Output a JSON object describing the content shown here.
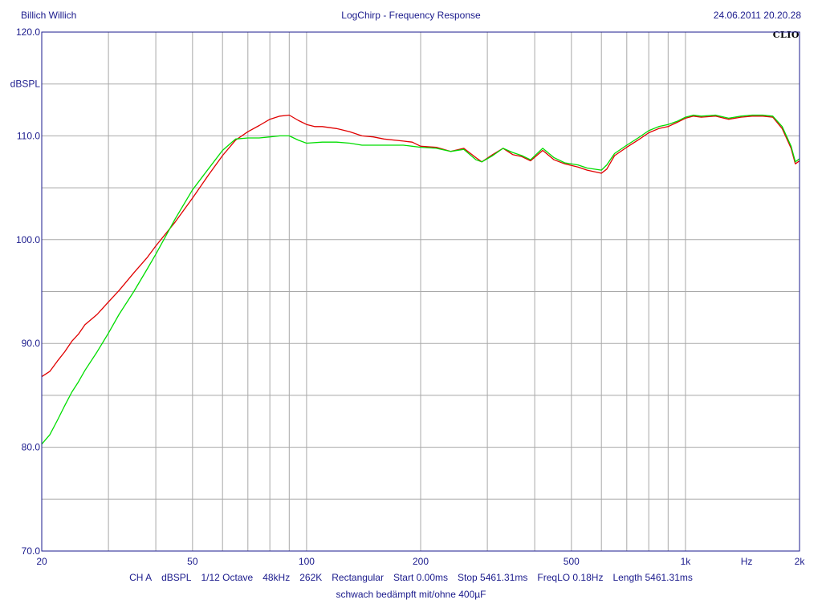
{
  "header": {
    "author": "Billich Willich",
    "title": "LogChirp - Frequency Response",
    "datetime": "24.06.2011 20.20.28",
    "logo": "CLIO"
  },
  "footer": {
    "info": [
      "CH A",
      "dBSPL",
      "1/12 Octave",
      "48kHz",
      "262K",
      "Rectangular",
      "Start 0.00ms",
      "Stop 5461.31ms",
      "FreqLO 0.18Hz",
      "Length 5461.31ms"
    ],
    "note": "schwach bedämpft mit/ohne 400µF"
  },
  "chart_data": {
    "type": "line",
    "title": "LogChirp - Frequency Response",
    "xlabel": "Hz",
    "ylabel": "dBSPL",
    "xscale": "log",
    "xlim": [
      20,
      2000
    ],
    "ylim": [
      70,
      120
    ],
    "x_tick_labels": [
      {
        "value": 20,
        "label": "20"
      },
      {
        "value": 50,
        "label": "50"
      },
      {
        "value": 100,
        "label": "100"
      },
      {
        "value": 200,
        "label": "200"
      },
      {
        "value": 500,
        "label": "500"
      },
      {
        "value": 1000,
        "label": "1k"
      },
      {
        "value": 2000,
        "label": "2k"
      }
    ],
    "x_unit_label": {
      "value": 1450,
      "label": "Hz"
    },
    "y_tick_labels": [
      {
        "value": 120,
        "label": "120.0"
      },
      {
        "value": 110,
        "label": "110.0"
      },
      {
        "value": 100,
        "label": "100.0"
      },
      {
        "value": 90,
        "label": "90.0"
      },
      {
        "value": 80,
        "label": "80.0"
      },
      {
        "value": 70,
        "label": "70.0"
      }
    ],
    "y_unit_label": {
      "value": 115,
      "label": "dBSPL"
    },
    "grid": true,
    "series": [
      {
        "color": "#e00000",
        "points": [
          [
            20,
            86.8
          ],
          [
            21,
            87.3
          ],
          [
            22,
            88.3
          ],
          [
            23,
            89.2
          ],
          [
            24,
            90.2
          ],
          [
            25,
            90.9
          ],
          [
            26,
            91.8
          ],
          [
            28,
            92.8
          ],
          [
            30,
            94.0
          ],
          [
            32,
            95.1
          ],
          [
            35,
            96.8
          ],
          [
            38,
            98.3
          ],
          [
            40,
            99.4
          ],
          [
            45,
            101.7
          ],
          [
            50,
            104.0
          ],
          [
            55,
            106.2
          ],
          [
            60,
            108.1
          ],
          [
            65,
            109.6
          ],
          [
            70,
            110.4
          ],
          [
            75,
            111.0
          ],
          [
            80,
            111.6
          ],
          [
            85,
            111.9
          ],
          [
            90,
            112.0
          ],
          [
            95,
            111.5
          ],
          [
            100,
            111.1
          ],
          [
            105,
            110.9
          ],
          [
            110,
            110.9
          ],
          [
            120,
            110.7
          ],
          [
            130,
            110.4
          ],
          [
            140,
            110.0
          ],
          [
            150,
            109.9
          ],
          [
            160,
            109.7
          ],
          [
            180,
            109.5
          ],
          [
            190,
            109.4
          ],
          [
            200,
            109.0
          ],
          [
            220,
            108.9
          ],
          [
            240,
            108.5
          ],
          [
            260,
            108.8
          ],
          [
            280,
            107.9
          ],
          [
            290,
            107.5
          ],
          [
            310,
            108.2
          ],
          [
            330,
            108.8
          ],
          [
            350,
            108.2
          ],
          [
            370,
            108.0
          ],
          [
            390,
            107.6
          ],
          [
            420,
            108.6
          ],
          [
            450,
            107.7
          ],
          [
            480,
            107.3
          ],
          [
            520,
            107.0
          ],
          [
            550,
            106.7
          ],
          [
            600,
            106.4
          ],
          [
            620,
            106.8
          ],
          [
            650,
            108.1
          ],
          [
            700,
            108.9
          ],
          [
            750,
            109.6
          ],
          [
            800,
            110.3
          ],
          [
            850,
            110.7
          ],
          [
            900,
            110.9
          ],
          [
            950,
            111.3
          ],
          [
            1000,
            111.7
          ],
          [
            1050,
            111.9
          ],
          [
            1100,
            111.8
          ],
          [
            1200,
            111.9
          ],
          [
            1300,
            111.6
          ],
          [
            1400,
            111.8
          ],
          [
            1500,
            111.9
          ],
          [
            1600,
            111.9
          ],
          [
            1700,
            111.8
          ],
          [
            1800,
            110.7
          ],
          [
            1900,
            108.8
          ],
          [
            1950,
            107.3
          ],
          [
            2000,
            107.6
          ]
        ]
      },
      {
        "color": "#00dd00",
        "points": [
          [
            20,
            80.3
          ],
          [
            21,
            81.2
          ],
          [
            22,
            82.6
          ],
          [
            23,
            84.0
          ],
          [
            24,
            85.3
          ],
          [
            25,
            86.3
          ],
          [
            26,
            87.4
          ],
          [
            28,
            89.2
          ],
          [
            30,
            91.0
          ],
          [
            32,
            92.8
          ],
          [
            35,
            95.0
          ],
          [
            38,
            97.2
          ],
          [
            40,
            98.6
          ],
          [
            45,
            102.0
          ],
          [
            50,
            104.8
          ],
          [
            55,
            106.8
          ],
          [
            60,
            108.6
          ],
          [
            65,
            109.7
          ],
          [
            70,
            109.8
          ],
          [
            75,
            109.8
          ],
          [
            80,
            109.9
          ],
          [
            85,
            110.0
          ],
          [
            90,
            110.0
          ],
          [
            95,
            109.6
          ],
          [
            100,
            109.3
          ],
          [
            110,
            109.4
          ],
          [
            120,
            109.4
          ],
          [
            130,
            109.3
          ],
          [
            140,
            109.1
          ],
          [
            150,
            109.1
          ],
          [
            160,
            109.1
          ],
          [
            180,
            109.1
          ],
          [
            190,
            109.0
          ],
          [
            200,
            108.9
          ],
          [
            220,
            108.8
          ],
          [
            240,
            108.5
          ],
          [
            260,
            108.7
          ],
          [
            280,
            107.7
          ],
          [
            290,
            107.5
          ],
          [
            310,
            108.1
          ],
          [
            330,
            108.8
          ],
          [
            350,
            108.4
          ],
          [
            370,
            108.1
          ],
          [
            390,
            107.7
          ],
          [
            420,
            108.8
          ],
          [
            450,
            107.9
          ],
          [
            480,
            107.4
          ],
          [
            520,
            107.2
          ],
          [
            550,
            106.9
          ],
          [
            600,
            106.7
          ],
          [
            620,
            107.2
          ],
          [
            650,
            108.3
          ],
          [
            700,
            109.1
          ],
          [
            750,
            109.8
          ],
          [
            800,
            110.5
          ],
          [
            850,
            110.9
          ],
          [
            900,
            111.1
          ],
          [
            950,
            111.4
          ],
          [
            1000,
            111.8
          ],
          [
            1050,
            112.0
          ],
          [
            1100,
            111.9
          ],
          [
            1200,
            112.0
          ],
          [
            1300,
            111.7
          ],
          [
            1400,
            111.9
          ],
          [
            1500,
            112.0
          ],
          [
            1600,
            112.0
          ],
          [
            1700,
            111.9
          ],
          [
            1800,
            110.9
          ],
          [
            1900,
            109.0
          ],
          [
            1950,
            107.5
          ],
          [
            2000,
            107.8
          ]
        ]
      }
    ]
  }
}
